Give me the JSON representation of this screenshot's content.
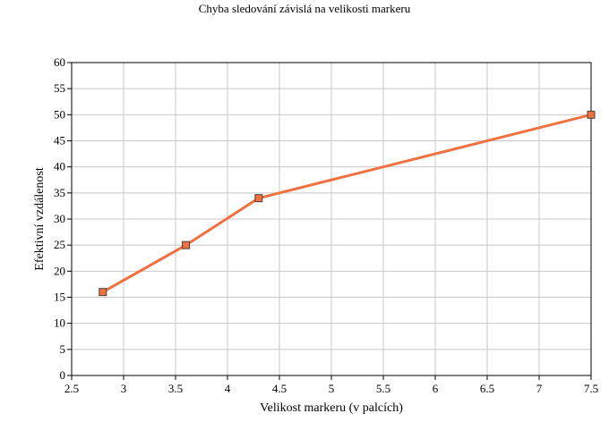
{
  "chart_data": {
    "type": "line",
    "title": "Chyba sledování závislá na velikosti markeru",
    "xlabel": "Velikost markeru (v palcích)",
    "ylabel": "Efektivní vzdálenost",
    "xlim": [
      2.5,
      7.5
    ],
    "ylim": [
      0,
      60
    ],
    "xticks": [
      "2.5",
      "3",
      "3.5",
      "4",
      "4.5",
      "5",
      "5.5",
      "6",
      "6.5",
      "7",
      "7.5"
    ],
    "yticks": [
      "0",
      "5",
      "10",
      "15",
      "20",
      "25",
      "30",
      "35",
      "40",
      "45",
      "50",
      "55",
      "60"
    ],
    "grid": true,
    "series": [
      {
        "x": [
          2.8,
          3.6,
          4.3,
          7.5
        ],
        "y": [
          16,
          25,
          34,
          50
        ],
        "color": "#f07040",
        "marker": "square",
        "marker_color": "#f07040",
        "marker_edge": "#444444"
      }
    ]
  }
}
